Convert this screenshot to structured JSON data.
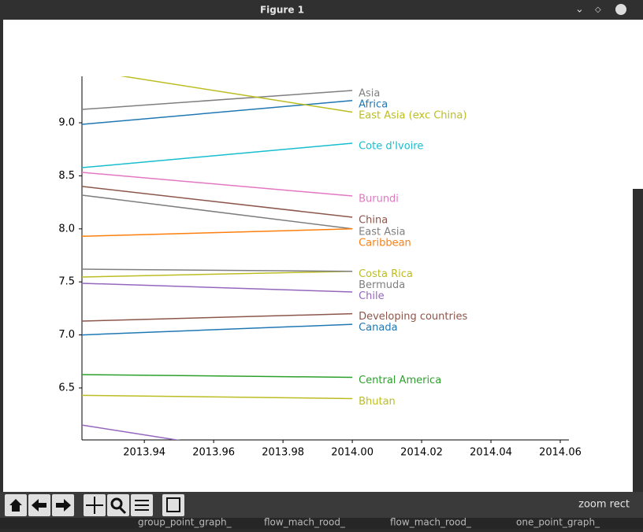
{
  "window": {
    "title": "Figure 1",
    "status": "zoom rect",
    "taskbar": [
      "group_point_graph_",
      "flow_mach_rood_",
      "flow_mach_rood_",
      "one_point_graph_"
    ]
  },
  "chart_data": {
    "type": "line",
    "x": [
      2013.922,
      2014.0
    ],
    "series": [
      {
        "name": "Asia",
        "color": "#7f7f7f",
        "values": [
          9.126,
          9.304
        ]
      },
      {
        "name": "Africa",
        "color": "#1f77b4",
        "values": [
          8.985,
          9.21
        ]
      },
      {
        "name": "East Asia (exc China)",
        "color": "#bcbd22",
        "values": [
          9.5,
          9.1
        ]
      },
      {
        "name": "Cote d'Ivoire",
        "color": "#17becf",
        "values": [
          8.577,
          8.807
        ]
      },
      {
        "name": "Burundi",
        "color": "#e377c2",
        "values": [
          8.533,
          8.31
        ]
      },
      {
        "name": "China",
        "color": "#8c564b",
        "values": [
          8.4,
          8.11
        ]
      },
      {
        "name": "East Asia",
        "color": "#7f7f7f",
        "values": [
          8.318,
          8.0
        ]
      },
      {
        "name": "Caribbean",
        "color": "#ff7f0e",
        "values": [
          7.93,
          8.0
        ]
      },
      {
        "name": "Costa Rica",
        "color": "#bcbd22",
        "values": [
          7.546,
          7.6
        ]
      },
      {
        "name": "Bermuda",
        "color": "#7f7f7f",
        "values": [
          7.62,
          7.6
        ]
      },
      {
        "name": "Chile",
        "color": "#9467bd",
        "values": [
          7.487,
          7.405
        ]
      },
      {
        "name": "Developing countries",
        "color": "#8c564b",
        "values": [
          7.13,
          7.2
        ]
      },
      {
        "name": "Canada",
        "color": "#1f77b4",
        "values": [
          7.0,
          7.1
        ]
      },
      {
        "name": "Central America",
        "color": "#2ca02c",
        "values": [
          6.626,
          6.6
        ]
      },
      {
        "name": "Bhutan",
        "color": "#bcbd22",
        "values": [
          6.43,
          6.4
        ]
      },
      {
        "name": null,
        "color": "#9467bd",
        "values": [
          6.15,
          5.75
        ]
      }
    ],
    "xlim": [
      2013.922,
      2014.0625
    ],
    "ylim": [
      6.01,
      9.438
    ],
    "xticks": [
      2013.94,
      2013.96,
      2013.98,
      {
        "value": 2014,
        "label": "2014.00"
      },
      2014.02,
      2014.04,
      2014.06
    ],
    "yticks": [
      {
        "value": 6.5,
        "label": "6.5"
      },
      {
        "value": 7,
        "label": "7.0"
      },
      {
        "value": 7.5,
        "label": "7.5"
      },
      {
        "value": 8,
        "label": "8.0"
      },
      {
        "value": 8.5,
        "label": "8.5"
      },
      {
        "value": 9,
        "label": "9.0"
      }
    ]
  }
}
